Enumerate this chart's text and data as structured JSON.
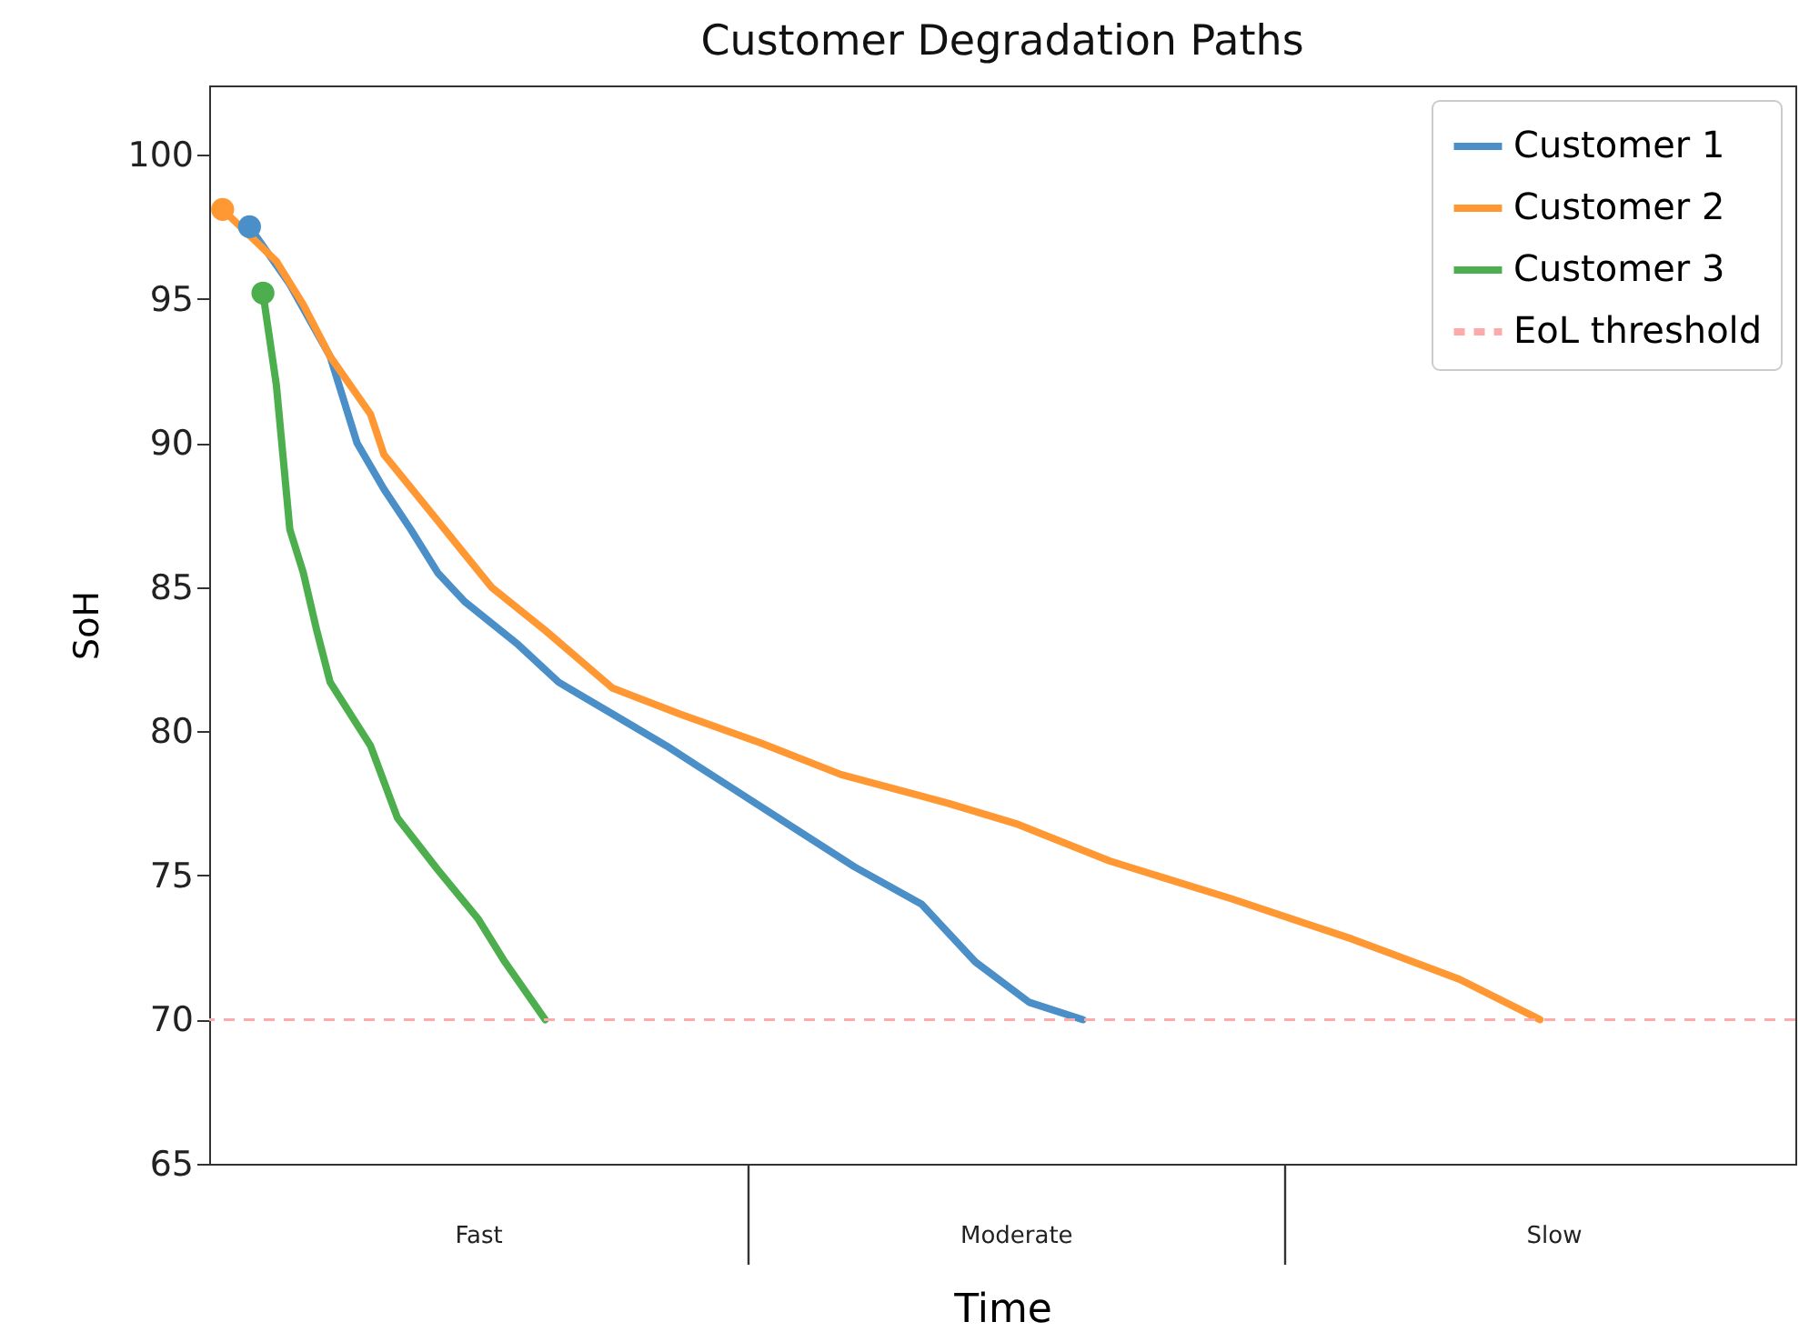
{
  "chart_data": {
    "type": "line",
    "title": "Customer Degradation Paths",
    "xlabel": "Time",
    "ylabel": "SoH",
    "categories": [
      null,
      null,
      null,
      null,
      null,
      null,
      null,
      null,
      null,
      null,
      null,
      null,
      null,
      null,
      null,
      null,
      null,
      null,
      null,
      null,
      "Fast",
      null,
      null,
      null,
      null,
      null,
      null,
      null,
      null,
      null,
      null,
      null,
      null,
      null,
      null,
      null,
      null,
      null,
      null,
      null,
      null,
      null,
      null,
      null,
      null,
      null,
      null,
      null,
      null,
      null,
      null,
      null,
      null,
      null,
      null,
      null,
      null,
      null,
      null,
      null,
      "Moderate",
      null,
      null,
      null,
      null,
      null,
      null,
      null,
      null,
      null,
      null,
      null,
      null,
      null,
      null,
      null,
      null,
      null,
      null,
      null,
      null,
      null,
      null,
      null,
      null,
      null,
      null,
      null,
      null,
      null,
      null,
      null,
      null,
      null,
      null,
      null,
      null,
      null,
      null,
      null,
      "Slow",
      null,
      null,
      null,
      null,
      null,
      null,
      null,
      null,
      null,
      null,
      null,
      null,
      null,
      null,
      null,
      null,
      null,
      null
    ],
    "ylim": [
      65,
      102.4
    ],
    "yticks": [
      65,
      70,
      75,
      80,
      85,
      90,
      95,
      100
    ],
    "series": [
      {
        "name": "Customer 1",
        "color": "#4a8fc7",
        "values": [
          null,
          null,
          null,
          97.5,
          null,
          null,
          95.5,
          null,
          null,
          93,
          null,
          90,
          null,
          88.4,
          null,
          87,
          null,
          85.5,
          null,
          84.5,
          null,
          null,
          null,
          83,
          null,
          null,
          81.7,
          null,
          null,
          null,
          80.6,
          null,
          null,
          null,
          79.5,
          null,
          null,
          null,
          null,
          78,
          null,
          null,
          null,
          76.8,
          null,
          null,
          null,
          null,
          75.3,
          null,
          null,
          null,
          null,
          74,
          null,
          null,
          null,
          72,
          null,
          null,
          null,
          70.6,
          null,
          null,
          null,
          70,
          null,
          null,
          null,
          null,
          null,
          null,
          null,
          null,
          null,
          null,
          null,
          null,
          null,
          null,
          null,
          null,
          null,
          null,
          null,
          null,
          null,
          null,
          null,
          null,
          null,
          null,
          null,
          null,
          null,
          null,
          null,
          null,
          null,
          null,
          null,
          null,
          null,
          null,
          null,
          null,
          null,
          null,
          null,
          null,
          null,
          null,
          null,
          null,
          null,
          null,
          null,
          null,
          null
        ]
      },
      {
        "name": "Customer 2",
        "color": "#ff9833",
        "values": [
          null,
          98.1,
          null,
          null,
          null,
          96.3,
          null,
          94.8,
          null,
          93,
          null,
          null,
          91,
          89.6,
          null,
          null,
          null,
          87.3,
          null,
          null,
          null,
          85,
          null,
          null,
          null,
          83.5,
          null,
          null,
          null,
          null,
          81.5,
          null,
          null,
          null,
          null,
          80.6,
          null,
          null,
          null,
          null,
          null,
          79.6,
          null,
          null,
          null,
          null,
          null,
          78.5,
          null,
          null,
          null,
          null,
          null,
          null,
          null,
          77.5,
          null,
          null,
          null,
          null,
          76.8,
          null,
          null,
          null,
          null,
          null,
          null,
          75.5,
          null,
          null,
          null,
          null,
          null,
          null,
          null,
          null,
          74.2,
          null,
          null,
          null,
          null,
          null,
          null,
          null,
          null,
          72.8,
          null,
          null,
          null,
          null,
          null,
          null,
          null,
          71.4,
          null,
          null,
          null,
          null,
          null,
          70,
          null,
          null,
          null,
          null,
          null,
          null,
          null,
          null,
          null,
          null,
          null,
          null,
          null,
          null,
          null,
          null,
          null,
          null,
          null
        ]
      },
      {
        "name": "Customer 3",
        "color": "#4cae4c",
        "values": [
          null,
          null,
          null,
          null,
          95.2,
          92,
          87,
          85.5,
          83.5,
          81.7,
          null,
          null,
          79.5,
          null,
          77,
          null,
          null,
          75.2,
          null,
          null,
          73.5,
          null,
          72,
          null,
          null,
          70,
          null,
          null,
          null,
          null,
          null,
          null,
          null,
          null,
          null,
          null,
          null,
          null,
          null,
          null,
          null,
          null,
          null,
          null,
          null,
          null,
          null,
          null,
          null,
          null,
          null,
          null,
          null,
          null,
          null,
          null,
          null,
          null,
          null,
          null,
          null,
          null,
          null,
          null,
          null,
          null,
          null,
          null,
          null,
          null,
          null,
          null,
          null,
          null,
          null,
          null,
          null,
          null,
          null,
          null,
          null,
          null,
          null,
          null,
          null,
          null,
          null,
          null,
          null,
          null,
          null,
          null,
          null,
          null,
          null,
          null,
          null,
          null,
          null,
          null,
          null,
          null,
          null,
          null,
          null,
          null,
          null,
          null,
          null,
          null,
          null,
          null,
          null,
          null,
          null,
          null,
          null,
          null,
          null
        ]
      },
      {
        "type": "scatter",
        "color": "#4a8fc7",
        "values": [
          null,
          null,
          null,
          97.5,
          null,
          null,
          null,
          null,
          null,
          null,
          null,
          null,
          null,
          null,
          null,
          null,
          null,
          null,
          null,
          null,
          null,
          null,
          null,
          null,
          null,
          null,
          null,
          null,
          null,
          null,
          null,
          null,
          null,
          null,
          null,
          null,
          null,
          null,
          null,
          null,
          null,
          null,
          null,
          null,
          null,
          null,
          null,
          null,
          null,
          null,
          null,
          null,
          null,
          null,
          null,
          null,
          null,
          null,
          null,
          null,
          null,
          null,
          null,
          null,
          null,
          null,
          null,
          null,
          null,
          null,
          null,
          null,
          null,
          null,
          null,
          null,
          null,
          null,
          null,
          null,
          null,
          null,
          null,
          null,
          null,
          null,
          null,
          null,
          null,
          null,
          null,
          null,
          null,
          null,
          null,
          null,
          null,
          null,
          null,
          null,
          null,
          null,
          null,
          null,
          null,
          null,
          null,
          null,
          null,
          null,
          null,
          null,
          null,
          null,
          null,
          null,
          null,
          null,
          null
        ]
      },
      {
        "type": "scatter",
        "color": "#ff9833",
        "values": [
          null,
          98.1,
          null,
          null,
          null,
          null,
          null,
          null,
          null,
          null,
          null,
          null,
          null,
          null,
          null,
          null,
          null,
          null,
          null,
          null,
          null,
          null,
          null,
          null,
          null,
          null,
          null,
          null,
          null,
          null,
          null,
          null,
          null,
          null,
          null,
          null,
          null,
          null,
          null,
          null,
          null,
          null,
          null,
          null,
          null,
          null,
          null,
          null,
          null,
          null,
          null,
          null,
          null,
          null,
          null,
          null,
          null,
          null,
          null,
          null,
          null,
          null,
          null,
          null,
          null,
          null,
          null,
          null,
          null,
          null,
          null,
          null,
          null,
          null,
          null,
          null,
          null,
          null,
          null,
          null,
          null,
          null,
          null,
          null,
          null,
          null,
          null,
          null,
          null,
          null,
          null,
          null,
          null,
          null,
          null,
          null,
          null,
          null,
          null,
          null,
          null,
          null,
          null,
          null,
          null,
          null,
          null,
          null,
          null,
          null,
          null,
          null,
          null,
          null,
          null,
          null,
          null,
          null,
          null
        ]
      },
      {
        "type": "scatter",
        "color": "#4cae4c",
        "values": [
          null,
          null,
          null,
          null,
          95.2,
          null,
          null,
          null,
          null,
          null,
          null,
          null,
          null,
          null,
          null,
          null,
          null,
          null,
          null,
          null,
          null,
          null,
          null,
          null,
          null,
          null,
          null,
          null,
          null,
          null,
          null,
          null,
          null,
          null,
          null,
          null,
          null,
          null,
          null,
          null,
          null,
          null,
          null,
          null,
          null,
          null,
          null,
          null,
          null,
          null,
          null,
          null,
          null,
          null,
          null,
          null,
          null,
          null,
          null,
          null,
          null,
          null,
          null,
          null,
          null,
          null,
          null,
          null,
          null,
          null,
          null,
          null,
          null,
          null,
          null,
          null,
          null,
          null,
          null,
          null,
          null,
          null,
          null,
          null,
          null,
          null,
          null,
          null,
          null,
          null,
          null,
          null,
          null,
          null,
          null,
          null,
          null,
          null,
          null,
          null,
          null,
          null,
          null,
          null,
          null,
          null,
          null,
          null,
          null,
          null,
          null,
          null,
          null,
          null,
          null,
          null,
          null,
          null,
          null
        ]
      }
    ],
    "ref_lines": [
      {
        "axis": "y",
        "value": 70,
        "label": "EoL threshold",
        "color": "#ffaaaa",
        "line_style": "dashed"
      }
    ],
    "legend": "top right"
  }
}
